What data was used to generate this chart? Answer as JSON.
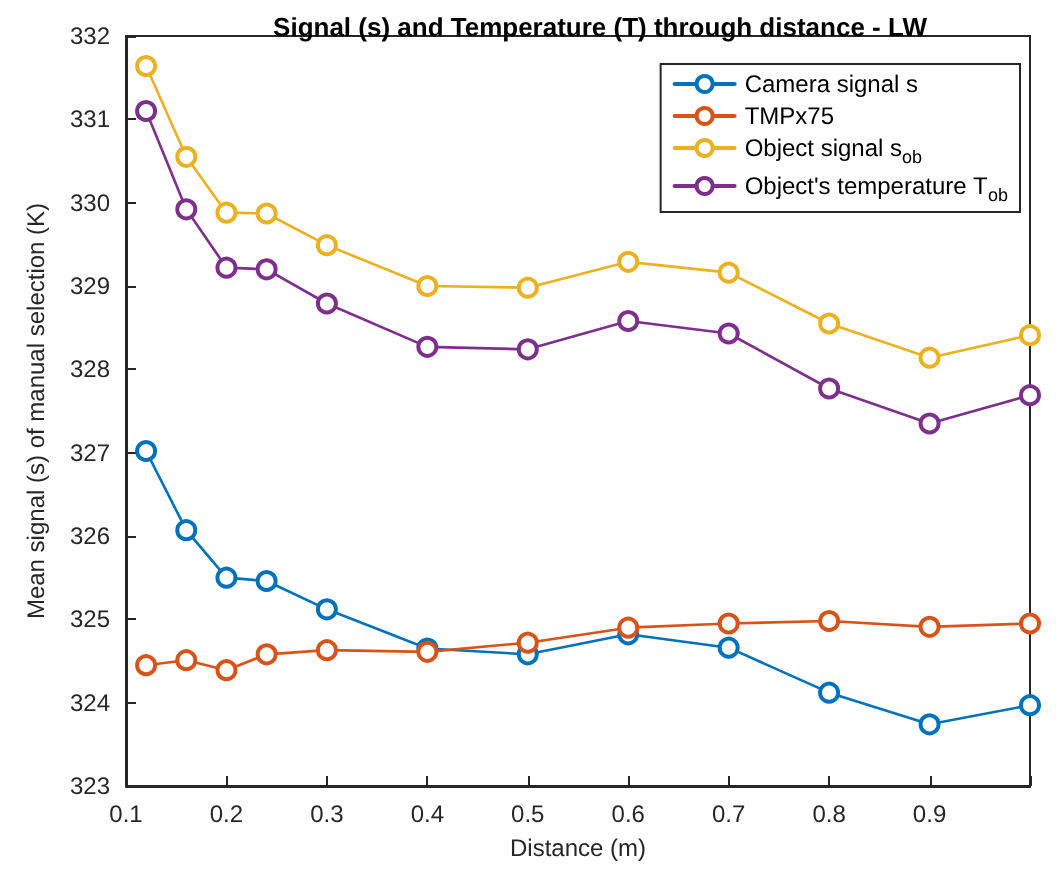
{
  "chart_data": {
    "type": "line",
    "title": "Signal (s) and Temperature (T) through distance - LW",
    "xlabel": "Distance (m)",
    "ylabel": "Mean signal (s) of manual selection (K)",
    "x": [
      0.12,
      0.16,
      0.2,
      0.24,
      0.3,
      0.4,
      0.5,
      0.6,
      0.7,
      0.8,
      0.9,
      1.0
    ],
    "series": [
      {
        "name": "Camera signal s",
        "color": "#0072bd",
        "values": [
          327.02,
          326.07,
          325.5,
          325.46,
          325.12,
          324.65,
          324.58,
          324.82,
          324.66,
          324.12,
          323.74,
          323.97
        ]
      },
      {
        "name": "TMPx75",
        "color": "#d95319",
        "values": [
          324.45,
          324.51,
          324.39,
          324.58,
          324.63,
          324.61,
          324.72,
          324.9,
          324.95,
          324.98,
          324.91,
          324.95
        ]
      },
      {
        "name": "Object signal s$_{ob}$",
        "color": "#edb120",
        "values": [
          331.64,
          330.55,
          329.88,
          329.87,
          329.49,
          329.0,
          328.98,
          329.29,
          329.16,
          328.55,
          328.14,
          328.41
        ]
      },
      {
        "name": "Object's temperature T$_{ob}$",
        "color": "#7e2f8e",
        "values": [
          331.1,
          329.92,
          329.22,
          329.2,
          328.79,
          328.27,
          328.24,
          328.58,
          328.43,
          327.77,
          327.35,
          327.69
        ]
      }
    ],
    "xlim": [
      0.1,
      1.0
    ],
    "xticks": [
      0.1,
      0.2,
      0.3,
      0.4,
      0.5,
      0.6,
      0.7,
      0.8,
      0.9,
      {
        "value": 1.0,
        "label": null
      }
    ],
    "ylim": [
      323,
      332
    ],
    "yticks": [
      323,
      324,
      325,
      326,
      327,
      328,
      329,
      330,
      331,
      332
    ],
    "grid": false,
    "legend": "top right",
    "marker": "circle",
    "line_style": "solid"
  }
}
